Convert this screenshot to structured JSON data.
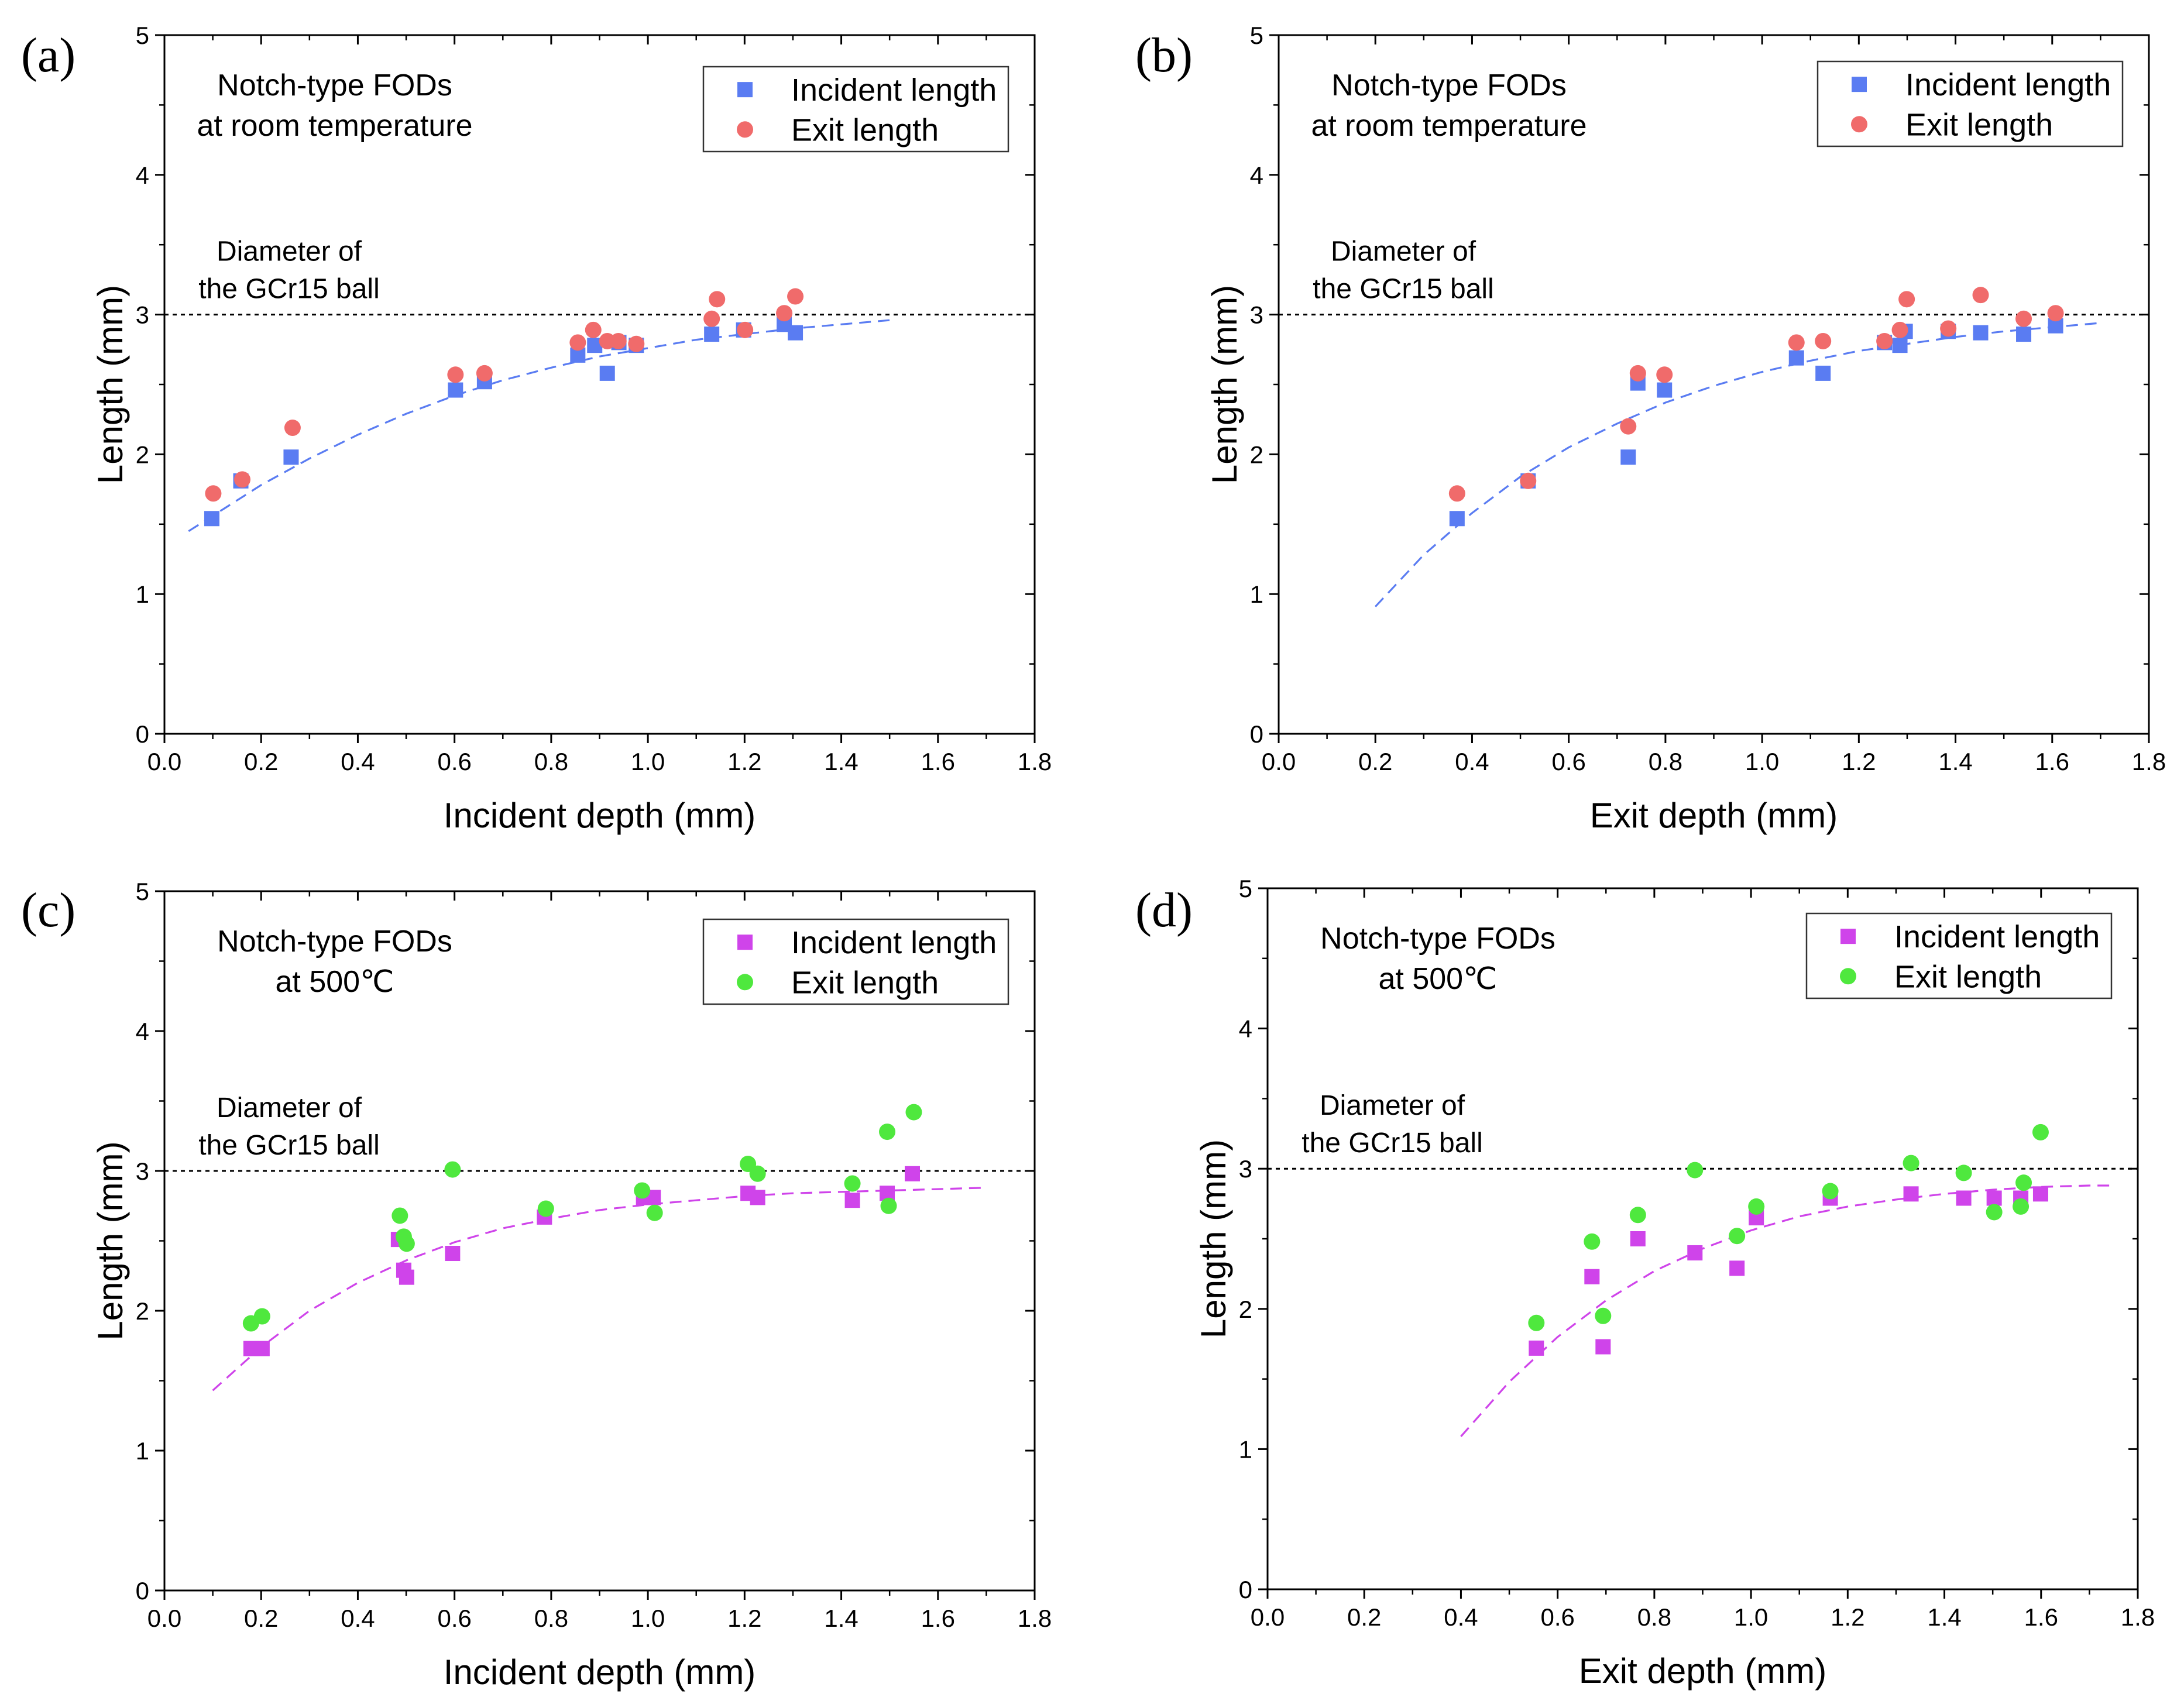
{
  "chart_data": [
    {
      "panel_label": "(a)",
      "type": "scatter",
      "xlabel": "Incident depth (mm)",
      "ylabel": "Length (mm)",
      "xlim": [
        0,
        1.8
      ],
      "ylim": [
        0,
        5
      ],
      "xticks": [
        "0.0",
        "0.2",
        "0.4",
        "0.6",
        "0.8",
        "1.0",
        "1.2",
        "1.4",
        "1.6",
        "1.8"
      ],
      "yticks": [
        "0",
        "1",
        "2",
        "3",
        "4",
        "5"
      ],
      "grid": false,
      "annotation": [
        "Notch-type FODs",
        "at room temperature"
      ],
      "reference_line": {
        "y": 3,
        "label": [
          "Diameter of",
          "the GCr15 ball"
        ]
      },
      "legend": {
        "position": "top-right"
      },
      "series": [
        {
          "name": "Incident length",
          "marker": "square",
          "color": "#5a7cf2",
          "points": [
            [
              0.098,
              1.54
            ],
            [
              0.158,
              1.81
            ],
            [
              0.262,
              1.98
            ],
            [
              0.602,
              2.46
            ],
            [
              0.662,
              2.52
            ],
            [
              0.855,
              2.71
            ],
            [
              0.89,
              2.78
            ],
            [
              0.916,
              2.58
            ],
            [
              0.94,
              2.8
            ],
            [
              0.976,
              2.78
            ],
            [
              1.132,
              2.86
            ],
            [
              1.198,
              2.89
            ],
            [
              1.282,
              2.93
            ],
            [
              1.305,
              2.87
            ]
          ]
        },
        {
          "name": "Exit length",
          "marker": "circle",
          "color": "#f06b6b",
          "points": [
            [
              0.101,
              1.72
            ],
            [
              0.161,
              1.82
            ],
            [
              0.265,
              2.19
            ],
            [
              0.602,
              2.57
            ],
            [
              0.662,
              2.58
            ],
            [
              0.855,
              2.8
            ],
            [
              0.887,
              2.89
            ],
            [
              0.916,
              2.81
            ],
            [
              0.939,
              2.81
            ],
            [
              0.976,
              2.79
            ],
            [
              1.132,
              2.97
            ],
            [
              1.143,
              3.11
            ],
            [
              1.201,
              2.89
            ],
            [
              1.282,
              3.01
            ],
            [
              1.305,
              3.13
            ]
          ]
        }
      ],
      "fit": {
        "color": "#5a7cf2",
        "points": [
          [
            0.05,
            1.45
          ],
          [
            0.1,
            1.56
          ],
          [
            0.2,
            1.78
          ],
          [
            0.3,
            1.97
          ],
          [
            0.4,
            2.14
          ],
          [
            0.5,
            2.29
          ],
          [
            0.6,
            2.42
          ],
          [
            0.7,
            2.53
          ],
          [
            0.8,
            2.62
          ],
          [
            0.9,
            2.7
          ],
          [
            1.0,
            2.76
          ],
          [
            1.1,
            2.82
          ],
          [
            1.2,
            2.86
          ],
          [
            1.3,
            2.9
          ],
          [
            1.4,
            2.93
          ],
          [
            1.5,
            2.96
          ]
        ]
      }
    },
    {
      "panel_label": "(b)",
      "type": "scatter",
      "xlabel": "Exit depth (mm)",
      "ylabel": "Length (mm)",
      "xlim": [
        0,
        1.8
      ],
      "ylim": [
        0,
        5
      ],
      "xticks": [
        "0.0",
        "0.2",
        "0.4",
        "0.6",
        "0.8",
        "1.0",
        "1.2",
        "1.4",
        "1.6",
        "1.8"
      ],
      "yticks": [
        "0",
        "1",
        "2",
        "3",
        "4",
        "5"
      ],
      "grid": false,
      "annotation": [
        "Notch-type FODs",
        "at room temperature"
      ],
      "reference_line": {
        "y": 3,
        "label": [
          "Diameter of",
          "the GCr15 ball"
        ]
      },
      "legend": {
        "position": "top-right"
      },
      "series": [
        {
          "name": "Incident length",
          "marker": "square",
          "color": "#5a7cf2",
          "points": [
            [
              0.369,
              1.54
            ],
            [
              0.516,
              1.81
            ],
            [
              0.723,
              1.98
            ],
            [
              0.743,
              2.51
            ],
            [
              0.798,
              2.46
            ],
            [
              1.071,
              2.69
            ],
            [
              1.126,
              2.58
            ],
            [
              1.253,
              2.8
            ],
            [
              1.285,
              2.78
            ],
            [
              1.296,
              2.88
            ],
            [
              1.385,
              2.88
            ],
            [
              1.452,
              2.87
            ],
            [
              1.541,
              2.86
            ],
            [
              1.607,
              2.92
            ]
          ]
        },
        {
          "name": "Exit length",
          "marker": "circle",
          "color": "#f06b6b",
          "points": [
            [
              0.369,
              1.72
            ],
            [
              0.516,
              1.81
            ],
            [
              0.723,
              2.2
            ],
            [
              0.743,
              2.58
            ],
            [
              0.798,
              2.57
            ],
            [
              1.071,
              2.8
            ],
            [
              1.126,
              2.81
            ],
            [
              1.253,
              2.81
            ],
            [
              1.285,
              2.89
            ],
            [
              1.299,
              3.11
            ],
            [
              1.385,
              2.9
            ],
            [
              1.452,
              3.14
            ],
            [
              1.541,
              2.97
            ],
            [
              1.607,
              3.01
            ]
          ]
        }
      ],
      "fit": {
        "color": "#5a7cf2",
        "points": [
          [
            0.2,
            0.91
          ],
          [
            0.3,
            1.28
          ],
          [
            0.4,
            1.58
          ],
          [
            0.5,
            1.84
          ],
          [
            0.6,
            2.05
          ],
          [
            0.7,
            2.22
          ],
          [
            0.8,
            2.37
          ],
          [
            0.9,
            2.49
          ],
          [
            1.0,
            2.59
          ],
          [
            1.1,
            2.67
          ],
          [
            1.2,
            2.74
          ],
          [
            1.3,
            2.79
          ],
          [
            1.4,
            2.84
          ],
          [
            1.5,
            2.88
          ],
          [
            1.6,
            2.91
          ],
          [
            1.7,
            2.94
          ]
        ]
      }
    },
    {
      "panel_label": "(c)",
      "type": "scatter",
      "xlabel": "Incident depth (mm)",
      "ylabel": "Length (mm)",
      "xlim": [
        0,
        1.8
      ],
      "ylim": [
        0,
        5
      ],
      "xticks": [
        "0.0",
        "0.2",
        "0.4",
        "0.6",
        "0.8",
        "1.0",
        "1.2",
        "1.4",
        "1.6",
        "1.8"
      ],
      "yticks": [
        "0",
        "1",
        "2",
        "3",
        "4",
        "5"
      ],
      "grid": false,
      "annotation": [
        "Notch-type FODs",
        "at 500℃"
      ],
      "reference_line": {
        "y": 3,
        "label": [
          "Diameter of",
          "the GCr15 ball"
        ]
      },
      "legend": {
        "position": "top-right"
      },
      "series": [
        {
          "name": "Incident length",
          "marker": "square",
          "color": "#cf44ea",
          "points": [
            [
              0.179,
              1.73
            ],
            [
              0.202,
              1.73
            ],
            [
              0.484,
              2.51
            ],
            [
              0.495,
              2.29
            ],
            [
              0.501,
              2.24
            ],
            [
              0.596,
              2.41
            ],
            [
              0.786,
              2.67
            ],
            [
              0.991,
              2.81
            ],
            [
              1.011,
              2.81
            ],
            [
              1.207,
              2.84
            ],
            [
              1.227,
              2.81
            ],
            [
              1.423,
              2.79
            ],
            [
              1.495,
              2.84
            ],
            [
              1.547,
              2.98
            ]
          ]
        },
        {
          "name": "Exit length",
          "marker": "circle",
          "color": "#4fe83e",
          "points": [
            [
              0.179,
              1.91
            ],
            [
              0.202,
              1.96
            ],
            [
              0.487,
              2.68
            ],
            [
              0.495,
              2.53
            ],
            [
              0.501,
              2.48
            ],
            [
              0.596,
              3.01
            ],
            [
              0.789,
              2.73
            ],
            [
              0.988,
              2.86
            ],
            [
              1.014,
              2.7
            ],
            [
              1.207,
              3.05
            ],
            [
              1.227,
              2.98
            ],
            [
              1.423,
              2.91
            ],
            [
              1.495,
              3.28
            ],
            [
              1.498,
              2.75
            ],
            [
              1.55,
              3.42
            ]
          ]
        }
      ],
      "fit": {
        "color": "#cf44ea",
        "points": [
          [
            0.1,
            1.43
          ],
          [
            0.2,
            1.74
          ],
          [
            0.3,
            2.0
          ],
          [
            0.4,
            2.2
          ],
          [
            0.5,
            2.36
          ],
          [
            0.6,
            2.49
          ],
          [
            0.7,
            2.59
          ],
          [
            0.8,
            2.66
          ],
          [
            0.9,
            2.72
          ],
          [
            1.0,
            2.76
          ],
          [
            1.1,
            2.79
          ],
          [
            1.2,
            2.82
          ],
          [
            1.3,
            2.84
          ],
          [
            1.4,
            2.85
          ],
          [
            1.5,
            2.86
          ],
          [
            1.6,
            2.87
          ],
          [
            1.7,
            2.88
          ]
        ]
      }
    },
    {
      "panel_label": "(d)",
      "type": "scatter",
      "xlabel": "Exit depth (mm)",
      "ylabel": "Length (mm)",
      "xlim": [
        0,
        1.8
      ],
      "ylim": [
        0,
        5
      ],
      "xticks": [
        "0.0",
        "0.2",
        "0.4",
        "0.6",
        "0.8",
        "1.0",
        "1.2",
        "1.4",
        "1.6",
        "1.8"
      ],
      "yticks": [
        "0",
        "1",
        "2",
        "3",
        "4",
        "5"
      ],
      "grid": false,
      "annotation": [
        "Notch-type FODs",
        "at 500℃"
      ],
      "reference_line": {
        "y": 3,
        "label": [
          "Diameter of",
          "the GCr15 ball"
        ]
      },
      "legend": {
        "position": "top-right"
      },
      "series": [
        {
          "name": "Incident length",
          "marker": "square",
          "color": "#cf44ea",
          "points": [
            [
              0.556,
              1.72
            ],
            [
              0.671,
              2.23
            ],
            [
              0.694,
              1.73
            ],
            [
              0.766,
              2.5
            ],
            [
              0.884,
              2.4
            ],
            [
              0.971,
              2.29
            ],
            [
              1.011,
              2.65
            ],
            [
              1.164,
              2.79
            ],
            [
              1.331,
              2.82
            ],
            [
              1.44,
              2.79
            ],
            [
              1.503,
              2.79
            ],
            [
              1.558,
              2.79
            ],
            [
              1.599,
              2.82
            ]
          ]
        },
        {
          "name": "Exit length",
          "marker": "circle",
          "color": "#4fe83e",
          "points": [
            [
              0.556,
              1.9
            ],
            [
              0.671,
              2.48
            ],
            [
              0.694,
              1.95
            ],
            [
              0.766,
              2.67
            ],
            [
              0.884,
              2.99
            ],
            [
              0.971,
              2.52
            ],
            [
              1.011,
              2.73
            ],
            [
              1.164,
              2.84
            ],
            [
              1.331,
              3.04
            ],
            [
              1.44,
              2.97
            ],
            [
              1.503,
              2.69
            ],
            [
              1.558,
              2.73
            ],
            [
              1.564,
              2.9
            ],
            [
              1.599,
              3.26
            ]
          ]
        }
      ],
      "fit": {
        "color": "#cf44ea",
        "points": [
          [
            0.4,
            1.09
          ],
          [
            0.5,
            1.48
          ],
          [
            0.6,
            1.8
          ],
          [
            0.7,
            2.06
          ],
          [
            0.8,
            2.27
          ],
          [
            0.9,
            2.43
          ],
          [
            1.0,
            2.56
          ],
          [
            1.1,
            2.66
          ],
          [
            1.2,
            2.73
          ],
          [
            1.3,
            2.78
          ],
          [
            1.4,
            2.82
          ],
          [
            1.5,
            2.85
          ],
          [
            1.6,
            2.87
          ],
          [
            1.7,
            2.88
          ],
          [
            1.75,
            2.88
          ]
        ]
      }
    }
  ]
}
